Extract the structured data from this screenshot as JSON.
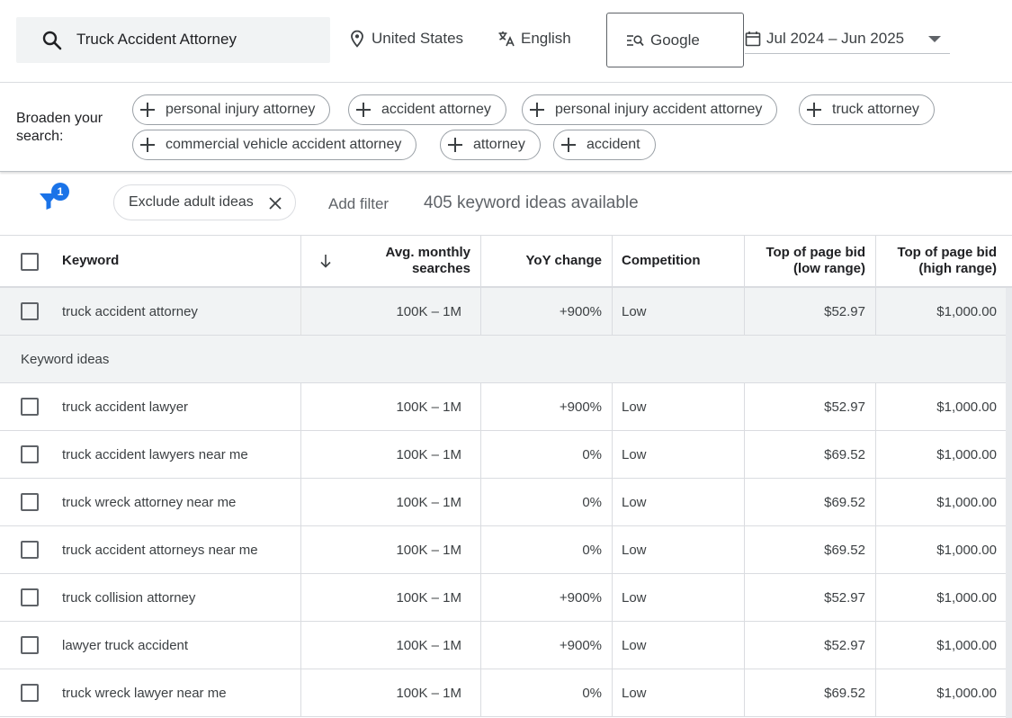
{
  "search": {
    "query": "Truck Accident Attorney"
  },
  "targeting": {
    "location": "United States",
    "language": "English",
    "engine": "Google",
    "date_range": "Jul 2024 – Jun 2025"
  },
  "broaden": {
    "label": "Broaden your search:",
    "chips": [
      "personal injury attorney",
      "accident attorney",
      "personal injury accident attorney",
      "truck attorney",
      "commercial vehicle accident attorney",
      "attorney",
      "accident"
    ]
  },
  "filters": {
    "badge_count": "1",
    "exclude_chip": "Exclude adult ideas",
    "add_filter": "Add filter",
    "ideas_count": "405 keyword ideas available"
  },
  "table": {
    "headers": {
      "keyword": "Keyword",
      "searches_line1": "Avg. monthly",
      "searches_line2": "searches",
      "yoy": "YoY change",
      "competition": "Competition",
      "bid_low_line1": "Top of page bid",
      "bid_low_line2": "(low range)",
      "bid_high_line1": "Top of page bid",
      "bid_high_line2": "(high range)"
    },
    "provided": {
      "keyword": "truck accident attorney",
      "searches": "100K – 1M",
      "yoy": "+900%",
      "competition": "Low",
      "bid_low": "$52.97",
      "bid_high": "$1,000.00"
    },
    "section_label": "Keyword ideas",
    "rows": [
      {
        "keyword": "truck accident lawyer",
        "searches": "100K – 1M",
        "yoy": "+900%",
        "competition": "Low",
        "bid_low": "$52.97",
        "bid_high": "$1,000.00"
      },
      {
        "keyword": "truck accident lawyers near me",
        "searches": "100K – 1M",
        "yoy": "0%",
        "competition": "Low",
        "bid_low": "$69.52",
        "bid_high": "$1,000.00"
      },
      {
        "keyword": "truck wreck attorney near me",
        "searches": "100K – 1M",
        "yoy": "0%",
        "competition": "Low",
        "bid_low": "$69.52",
        "bid_high": "$1,000.00"
      },
      {
        "keyword": "truck accident attorneys near me",
        "searches": "100K – 1M",
        "yoy": "0%",
        "competition": "Low",
        "bid_low": "$69.52",
        "bid_high": "$1,000.00"
      },
      {
        "keyword": "truck collision attorney",
        "searches": "100K – 1M",
        "yoy": "+900%",
        "competition": "Low",
        "bid_low": "$52.97",
        "bid_high": "$1,000.00"
      },
      {
        "keyword": "lawyer truck accident",
        "searches": "100K – 1M",
        "yoy": "+900%",
        "competition": "Low",
        "bid_low": "$52.97",
        "bid_high": "$1,000.00"
      },
      {
        "keyword": "truck wreck lawyer near me",
        "searches": "100K – 1M",
        "yoy": "0%",
        "competition": "Low",
        "bid_low": "$69.52",
        "bid_high": "$1,000.00"
      }
    ]
  }
}
